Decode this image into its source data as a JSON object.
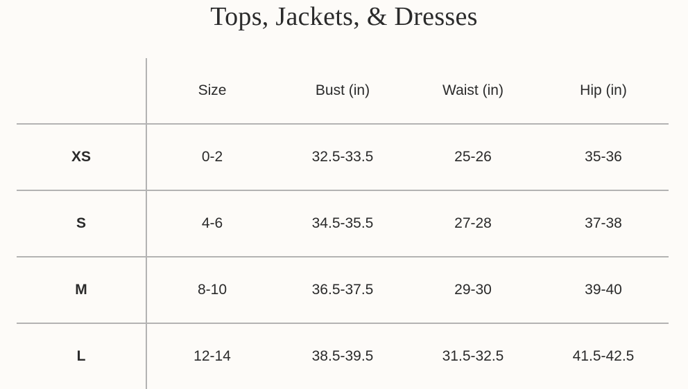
{
  "title": "Tops, Jackets, & Dresses",
  "headers": [
    "",
    "Size",
    "Bust (in)",
    "Waist (in)",
    "Hip (in)"
  ],
  "rows": [
    {
      "label": "XS",
      "size": "0-2",
      "bust": "32.5-33.5",
      "waist": "25-26",
      "hip": "35-36"
    },
    {
      "label": "S",
      "size": "4-6",
      "bust": "34.5-35.5",
      "waist": "27-28",
      "hip": "37-38"
    },
    {
      "label": "M",
      "size": "8-10",
      "bust": "36.5-37.5",
      "waist": "29-30",
      "hip": "39-40"
    },
    {
      "label": "L",
      "size": "12-14",
      "bust": "38.5-39.5",
      "waist": "31.5-32.5",
      "hip": "41.5-42.5"
    }
  ]
}
